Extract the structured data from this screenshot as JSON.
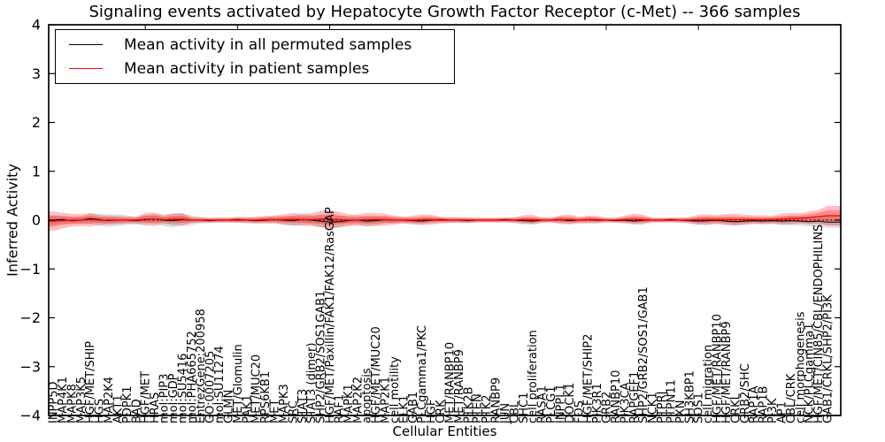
{
  "title": "Signaling events activated by Hepatocyte Growth Factor Receptor (c-Met) -- 366 samples",
  "axes": {
    "ylabel": "Inferred Activity",
    "xlabel": "Cellular Entities",
    "yticks": [
      "4",
      "3",
      "2",
      "1",
      "0",
      "−1",
      "−2",
      "−3",
      "−4"
    ],
    "ytick_values": [
      4,
      3,
      2,
      1,
      0,
      -1,
      -2,
      -3,
      -4
    ]
  },
  "legend": {
    "position": "upper left",
    "items": [
      {
        "label": "Mean activity in all permuted samples",
        "color": "#000000"
      },
      {
        "label": "Mean activity in patient samples",
        "color": "#ff0000"
      }
    ]
  },
  "chart_data": {
    "type": "line",
    "title": "Signaling events activated by Hepatocyte Growth Factor Receptor (c-Met) -- 366 samples",
    "xlabel": "Cellular Entities",
    "ylabel": "Inferred Activity",
    "ylim": [
      -4,
      4
    ],
    "grid": false,
    "n_samples": 366,
    "categories": [
      "INPP5D",
      "MAP4K1",
      "MAPK8",
      "MAP3K5",
      "HGF/MET/SHIP",
      "HGS",
      "MAP2K4",
      "AKT1",
      "PDPK1",
      "BAD",
      "HGF/MET",
      "HRAS",
      "mol:PIP3",
      "mol:GDP",
      "mol:SU5416",
      "mol:PHA665752",
      "EntrezGene:200958",
      "GO:0007205",
      "mol:SU11274",
      "GLMN",
      "MET/Glomulin",
      "PAK1",
      "MET/MUC20",
      "RPS6KB1",
      "MET",
      "MAPK3",
      "SRC",
      "STAT3",
      "STAT3 (dimer)",
      "SHP2/GRB2/SOS1GAB1",
      "HGF/MET/Paxillin/FAK1/FAK12/RasGAP",
      "RAF1",
      "MAPK1",
      "MAP2K2",
      "apoptosis",
      "HGF/MET/MUC20",
      "MAP2K1",
      "cell motility",
      "ELK1",
      "GAB1",
      "PLCgamma1/PKC",
      "HGF",
      "CRK",
      "MET/RANBP10",
      "MET/RANBP9",
      "PTK2B",
      "PTEN",
      "PTK2",
      "RANBP9",
      "JUN",
      "CBL",
      "SHC1",
      "cell proliferation",
      "RASA1",
      "PLCG1",
      "INPPL1",
      "DOCK1",
      "FOS",
      "HGF/MET/SHIP2",
      "PIK3R1",
      "GRB2",
      "RANBP10",
      "PIK3CA",
      "RAPGEF1",
      "SHP2/GRB2/SOS1/GAB1",
      "NCK1",
      "PTPRJ",
      "PTPN11",
      "PXN",
      "SH3KBP1",
      "SOS1",
      "cell migration",
      "HGF/MET/RANBP10",
      "HGF/MET/RANBP9",
      "CRKL",
      "GRB2/SHC",
      "RAP1A",
      "RAP1B",
      "PI3K",
      "AP1",
      "CBL/CRK",
      "cell morphogenesis",
      "NCK/PLCgamma1",
      "HGF/MET/CIN85/CBL/ENDOPHILINS",
      "GAB1/CRKL/SHP2/PI3K"
    ],
    "series": [
      {
        "name": "Mean activity in all permuted samples",
        "color": "#000000",
        "band_color": "#8c8c8c",
        "values": [
          0,
          0.01,
          -0.01,
          0,
          0.03,
          0.01,
          -0.01,
          0,
          0,
          -0.01,
          0.01,
          0.02,
          0,
          -0.01,
          0.01,
          0,
          0,
          -0.01,
          0,
          0,
          0.01,
          0,
          -0.01,
          0,
          0.01,
          0,
          -0.01,
          0.01,
          0,
          -0.02,
          -0.04,
          -0.03,
          -0.01,
          0,
          -0.02,
          -0.01,
          0.01,
          0,
          0,
          -0.01,
          -0.02,
          0,
          0.01,
          0,
          0,
          -0.01,
          0,
          0,
          0,
          0.01,
          0,
          -0.01,
          -0.02,
          0,
          0,
          0.01,
          -0.01,
          0,
          0.01,
          0,
          0,
          -0.01,
          0,
          -0.02,
          0,
          0,
          0,
          0.01,
          0,
          -0.01,
          -0.02,
          -0.01,
          0,
          -0.02,
          -0.03,
          -0.02,
          -0.01,
          -0.02,
          -0.01,
          -0.02,
          -0.01,
          -0.02,
          -0.03,
          -0.02,
          -0.04
        ],
        "band": [
          0.1,
          0.08,
          0.07,
          0.08,
          0.1,
          0.12,
          0.13,
          0.12,
          0.1,
          0.08,
          0.09,
          0.1,
          0.12,
          0.14,
          0.13,
          0.1,
          0.07,
          0.05,
          0.05,
          0.05,
          0.06,
          0.06,
          0.06,
          0.06,
          0.07,
          0.08,
          0.1,
          0.11,
          0.1,
          0.12,
          0.13,
          0.12,
          0.1,
          0.09,
          0.1,
          0.09,
          0.08,
          0.07,
          0.06,
          0.06,
          0.07,
          0.06,
          0.05,
          0.05,
          0.05,
          0.05,
          0.04,
          0.04,
          0.04,
          0.04,
          0.05,
          0.06,
          0.06,
          0.05,
          0.04,
          0.06,
          0.06,
          0.05,
          0.06,
          0.05,
          0.04,
          0.04,
          0.05,
          0.06,
          0.06,
          0.04,
          0.04,
          0.04,
          0.05,
          0.06,
          0.08,
          0.08,
          0.07,
          0.08,
          0.08,
          0.08,
          0.07,
          0.07,
          0.07,
          0.08,
          0.09,
          0.09,
          0.1,
          0.11,
          0.12
        ]
      },
      {
        "name": "Mean activity in patient samples",
        "color": "#ff0000",
        "band_color": "#ff0000",
        "values": [
          -0.02,
          -0.01,
          0,
          0,
          0.01,
          0,
          0,
          0,
          0,
          0,
          0.02,
          0.02,
          0.01,
          0.02,
          0.02,
          0,
          0,
          0,
          0,
          0,
          0,
          0,
          0,
          0.01,
          0.01,
          0.01,
          0.02,
          0.01,
          0.01,
          0.02,
          0.02,
          0.01,
          0,
          0,
          0.01,
          0.01,
          0.01,
          0,
          0,
          0,
          0.01,
          0.01,
          0,
          0,
          0,
          0,
          0,
          0,
          0,
          0,
          0,
          0.01,
          0.01,
          0,
          0,
          0.01,
          0.01,
          0,
          0.01,
          0.01,
          0,
          0,
          0.01,
          0.02,
          0.01,
          0,
          0,
          0,
          0,
          0,
          0.01,
          0.01,
          0.01,
          0.01,
          0.01,
          0.01,
          0.01,
          0.01,
          0.01,
          0.02,
          0.03,
          0.04,
          0.05,
          0.07,
          0.09
        ],
        "band": [
          0.2,
          0.16,
          0.13,
          0.12,
          0.14,
          0.1,
          0.09,
          0.08,
          0.07,
          0.07,
          0.13,
          0.14,
          0.08,
          0.12,
          0.13,
          0.06,
          0.05,
          0.05,
          0.05,
          0.05,
          0.06,
          0.06,
          0.07,
          0.08,
          0.08,
          0.11,
          0.13,
          0.12,
          0.13,
          0.17,
          0.19,
          0.16,
          0.12,
          0.11,
          0.14,
          0.13,
          0.12,
          0.09,
          0.07,
          0.09,
          0.11,
          0.1,
          0.07,
          0.06,
          0.06,
          0.06,
          0.05,
          0.05,
          0.05,
          0.05,
          0.06,
          0.09,
          0.1,
          0.06,
          0.05,
          0.09,
          0.1,
          0.07,
          0.08,
          0.08,
          0.05,
          0.05,
          0.08,
          0.11,
          0.1,
          0.05,
          0.05,
          0.05,
          0.05,
          0.06,
          0.1,
          0.11,
          0.09,
          0.11,
          0.12,
          0.1,
          0.09,
          0.09,
          0.08,
          0.11,
          0.12,
          0.1,
          0.13,
          0.14,
          0.2
        ]
      }
    ]
  }
}
